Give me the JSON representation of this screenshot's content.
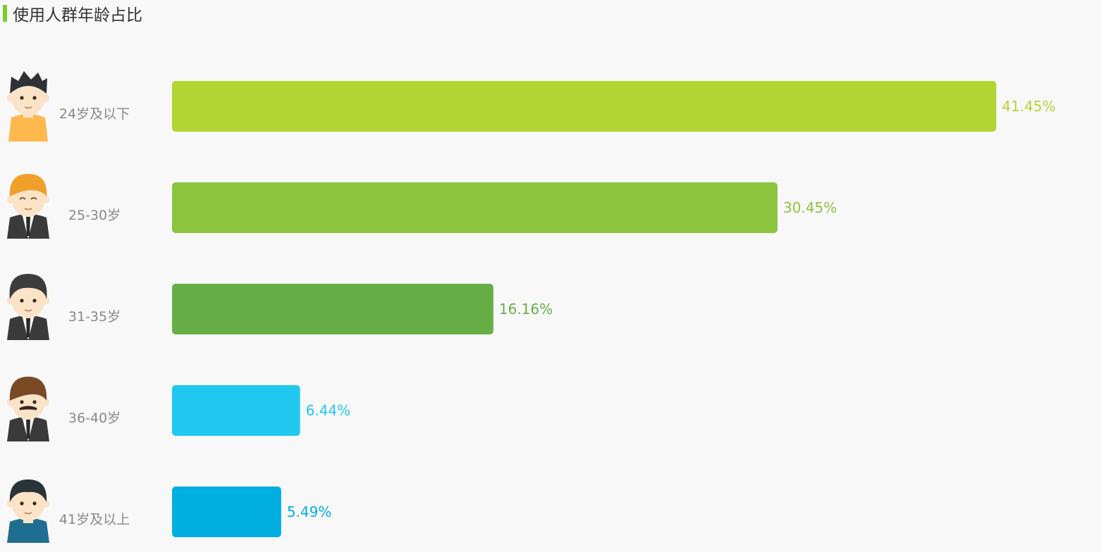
{
  "title": "使用人群年龄占比",
  "chart_data": {
    "type": "bar",
    "orientation": "horizontal",
    "categories": [
      "24岁及以下",
      "25-30岁",
      "31-35岁",
      "36-40岁",
      "41岁及以上"
    ],
    "values": [
      41.45,
      30.45,
      16.16,
      6.44,
      5.49
    ],
    "value_labels": [
      "41.45%",
      "30.45%",
      "16.16%",
      "6.44%",
      "5.49%"
    ],
    "colors": [
      "#b3d432",
      "#8cc43e",
      "#66af46",
      "#20c8f0",
      "#00aee0"
    ],
    "avatars": [
      "young-boy",
      "young-man",
      "businessman",
      "mustache-man",
      "older-man"
    ],
    "xlim": [
      0,
      41.45
    ],
    "grid": false,
    "legend": "none"
  }
}
